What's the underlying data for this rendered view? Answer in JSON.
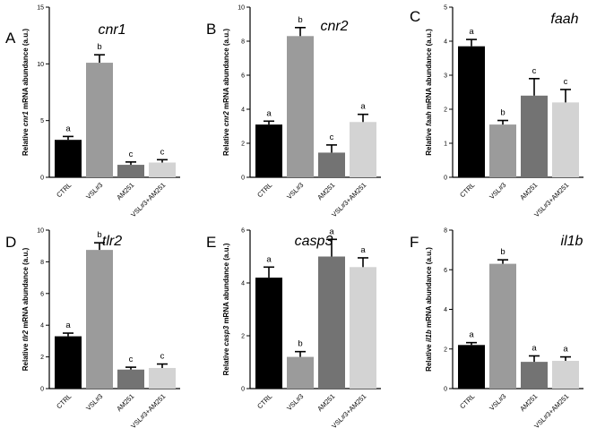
{
  "colors": {
    "CTRL": "#000000",
    "VSL#3": "#9b9b9b",
    "AM251": "#737373",
    "VSL#3+AM251": "#d3d3d3",
    "axis": "#000000"
  },
  "chart_data": [
    {
      "type": "bar",
      "panel": "A",
      "title": "cnr1",
      "ylabel_pre": "Relative ",
      "ylabel_gene": "cnr1",
      "ylabel_post": " mRNA abundance (a.u.)",
      "categories": [
        "CTRL",
        "VSL#3",
        "AM251",
        "VSL#3+AM251"
      ],
      "values": [
        3.3,
        10.1,
        1.1,
        1.3
      ],
      "errors": [
        0.3,
        0.7,
        0.25,
        0.25
      ],
      "letters": [
        "a",
        "b",
        "c",
        "c"
      ],
      "ylim": [
        0,
        15
      ],
      "yticks": [
        0,
        5,
        10,
        15
      ],
      "ytick_labels": [
        "0",
        "5",
        "10",
        "15"
      ]
    },
    {
      "type": "bar",
      "panel": "B",
      "title": "cnr2",
      "ylabel_pre": "Relative ",
      "ylabel_gene": "cnr2",
      "ylabel_post": " mRNA abundance (a.u.)",
      "categories": [
        "CTRL",
        "VSL#3",
        "AM251",
        "VSL#3+AM251"
      ],
      "values": [
        3.1,
        8.3,
        1.45,
        3.25
      ],
      "errors": [
        0.2,
        0.5,
        0.45,
        0.45
      ],
      "letters": [
        "a",
        "b",
        "c",
        "a"
      ],
      "ylim": [
        0,
        10
      ],
      "yticks": [
        0,
        2,
        4,
        6,
        8,
        10
      ],
      "ytick_labels": [
        "0",
        "2",
        "4",
        "6",
        "8",
        "10"
      ]
    },
    {
      "type": "bar",
      "panel": "C",
      "title": "faah",
      "ylabel_pre": "Relative ",
      "ylabel_gene": "faah",
      "ylabel_post": " mRNA abundance (a.u.)",
      "categories": [
        "CTRL",
        "VSL#3",
        "AM251",
        "VSL#3+AM251"
      ],
      "values": [
        3.85,
        1.55,
        2.4,
        2.2
      ],
      "errors": [
        0.2,
        0.12,
        0.5,
        0.38
      ],
      "letters": [
        "a",
        "b",
        "c",
        "c"
      ],
      "ylim": [
        0,
        5
      ],
      "yticks": [
        0,
        1,
        2,
        3,
        4,
        5
      ],
      "ytick_labels": [
        "0",
        "1",
        "2",
        "3",
        "4",
        "5"
      ]
    },
    {
      "type": "bar",
      "panel": "D",
      "title": "tlr2",
      "ylabel_pre": "Relative ",
      "ylabel_gene": "tlr2",
      "ylabel_post": " mRNA abundance (a.u.)",
      "categories": [
        "CTRL",
        "VSL#3",
        "AM251",
        "VSL#3+AM251"
      ],
      "values": [
        3.3,
        8.75,
        1.2,
        1.3
      ],
      "errors": [
        0.2,
        0.45,
        0.15,
        0.25
      ],
      "letters": [
        "a",
        "b",
        "c",
        "c"
      ],
      "ylim": [
        0,
        10
      ],
      "yticks": [
        0,
        2,
        4,
        6,
        8,
        10
      ],
      "ytick_labels": [
        "0",
        "2",
        "4",
        "6",
        "8",
        "10"
      ]
    },
    {
      "type": "bar",
      "panel": "E",
      "title": "casp3",
      "ylabel_pre": "Relative ",
      "ylabel_gene": "casp3",
      "ylabel_post": " mRNA abundance (a.u.)",
      "categories": [
        "CTRL",
        "VSL#3",
        "AM251",
        "VSL#3+AM251"
      ],
      "values": [
        4.2,
        1.2,
        5.0,
        4.6
      ],
      "errors": [
        0.4,
        0.2,
        0.65,
        0.35
      ],
      "letters": [
        "a",
        "b",
        "a",
        "a"
      ],
      "ylim": [
        0,
        6
      ],
      "yticks": [
        0,
        2,
        4,
        6
      ],
      "ytick_labels": [
        "0",
        "2",
        "4",
        "6"
      ]
    },
    {
      "type": "bar",
      "panel": "F",
      "title": "il1b",
      "ylabel_pre": "Relative ",
      "ylabel_gene": "il1b",
      "ylabel_post": " mRNA abundance (a.u.)",
      "categories": [
        "CTRL",
        "VSL#3",
        "AM251",
        "VSL#3+AM251"
      ],
      "values": [
        2.2,
        6.3,
        1.35,
        1.4
      ],
      "errors": [
        0.12,
        0.2,
        0.3,
        0.2
      ],
      "letters": [
        "a",
        "b",
        "a",
        "a"
      ],
      "ylim": [
        0,
        8
      ],
      "yticks": [
        0,
        2,
        4,
        6,
        8
      ],
      "ytick_labels": [
        "0",
        "2",
        "4",
        "6",
        "8"
      ]
    }
  ]
}
